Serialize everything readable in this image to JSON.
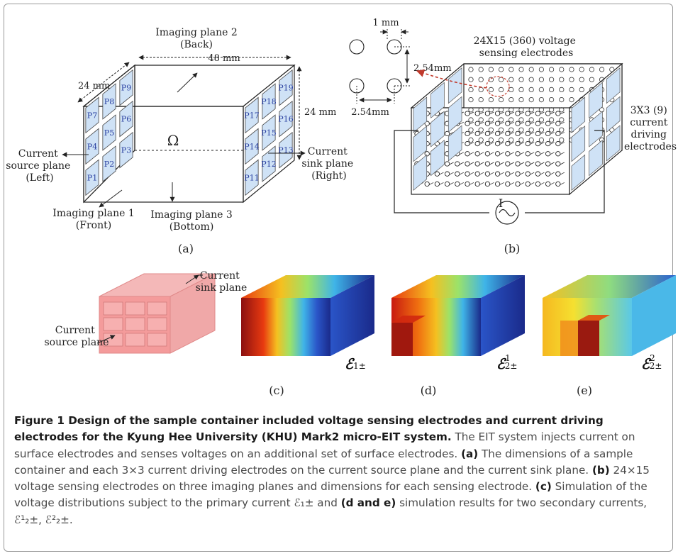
{
  "figure": {
    "panel_a": {
      "imaging_plane_2": "Imaging plane 2",
      "imaging_plane_2_sub": "(Back)",
      "dim_48": "48 mm",
      "dim_24_left": "24 mm",
      "dim_24_right": "24 mm",
      "omega": "Ω",
      "current_source_plane": [
        "Current",
        "source plane",
        "(Left)"
      ],
      "current_sink_plane": [
        "Current",
        "sink plane",
        "(Right)"
      ],
      "imaging_plane_1": "Imaging plane 1",
      "imaging_plane_1_sub": "(Front)",
      "imaging_plane_3": "Imaging plane 3",
      "imaging_plane_3_sub": "(Bottom)",
      "left_electrodes": [
        "P7",
        "P8",
        "P9",
        "P4",
        "P5",
        "P6",
        "P1",
        "P2",
        "P3"
      ],
      "right_electrodes": [
        "P17",
        "P18",
        "P19",
        "P14",
        "P15",
        "P16",
        "P11",
        "P12",
        "P13"
      ],
      "label": "(a)"
    },
    "panel_b": {
      "dim_1mm": "1 mm",
      "dim_254_a": "2.54mm",
      "dim_254_b": "2.54mm",
      "sensing_label": [
        "24X15 (360) voltage",
        "sensing electrodes"
      ],
      "driving_label": [
        "3X3 (9)",
        "current",
        "driving",
        "electrodes"
      ],
      "current_symbol": "I",
      "label": "(b)"
    },
    "panel_c": {
      "sink_label": [
        "Current",
        "sink plane"
      ],
      "source_label": [
        "Current",
        "source plane"
      ],
      "symbol": "1±",
      "label": "(c)"
    },
    "panel_d": {
      "symbol_sup": "1",
      "symbol_sub": "2±",
      "label": "(d)"
    },
    "panel_e": {
      "symbol_sup": "2",
      "symbol_sub": "2±",
      "label": "(e)"
    }
  },
  "caption": {
    "title": "Figure 1 Design of the sample container included voltage sensing electrodes and current driving electrodes for the Kyung Hee University (KHU) Mark2 micro-EIT system.",
    "intro": " The EIT system injects current on surface electrodes and senses voltages on an additional set of surface electrodes. ",
    "a_tag": "(a)",
    "a_text": " The dimensions of a sample container and each 3×3 current driving electrodes on the current source plane and the current sink plane. ",
    "b_tag": "(b)",
    "b_text": " 24×15 voltage sensing electrodes on three imaging planes and dimensions for each sensing electrode. ",
    "c_tag": "(c)",
    "c_text": " Simulation of the voltage distributions subject to the primary current ",
    "c_sym": "ℰ₁±",
    "c_and": " and ",
    "de_tag": "(d and e)",
    "de_text": " simulation results for two secondary currents, ",
    "de_sym": "ℰ¹₂±, ℰ²₂±",
    "end": "."
  }
}
